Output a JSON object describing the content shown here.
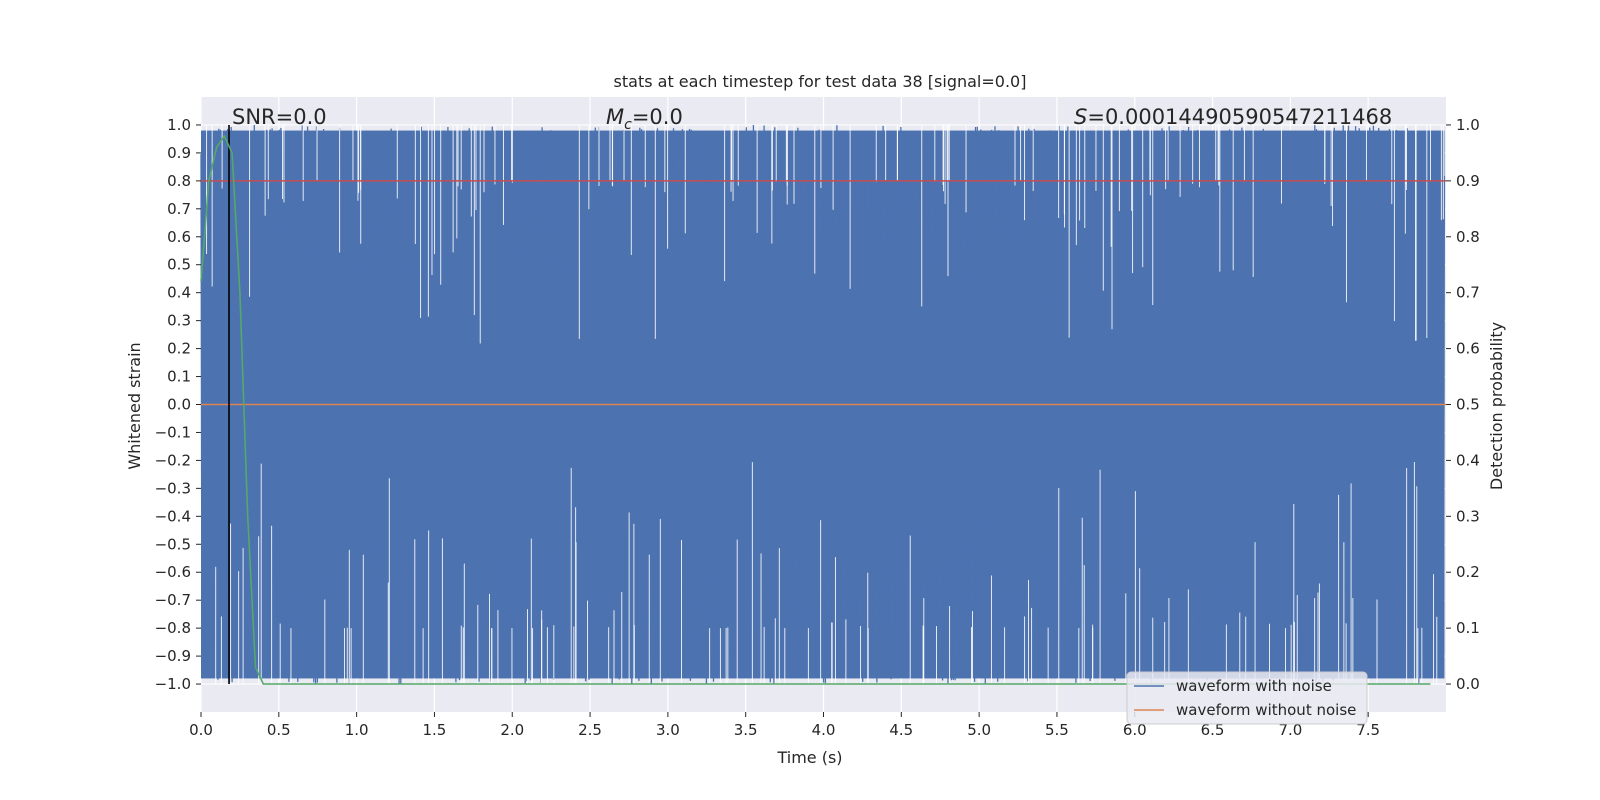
{
  "chart_data": {
    "type": "line",
    "title": "stats at each timestep for test data 38 [signal=0.0]",
    "xlabel": "Time (s)",
    "ylabel": "Whitened strain",
    "ylabel_right": "Detection probability",
    "xlim": [
      0.0,
      8.0
    ],
    "ylim": [
      -1.1,
      1.1
    ],
    "ylim_right": [
      -0.05,
      1.05
    ],
    "x_ticks": [
      "0.0",
      "0.5",
      "1.0",
      "1.5",
      "2.0",
      "2.5",
      "3.0",
      "3.5",
      "4.0",
      "4.5",
      "5.0",
      "5.5",
      "6.0",
      "6.5",
      "7.0",
      "7.5"
    ],
    "y_ticks": [
      "1.0",
      "0.9",
      "0.8",
      "0.7",
      "0.6",
      "0.5",
      "0.4",
      "0.3",
      "0.2",
      "0.1",
      "0.0",
      "−0.1",
      "−0.2",
      "−0.3",
      "−0.4",
      "−0.5",
      "−0.6",
      "−0.7",
      "−0.8",
      "−0.9",
      "−1.0"
    ],
    "y_ticks_right": [
      "1.0",
      "0.9",
      "0.8",
      "0.7",
      "0.6",
      "0.5",
      "0.4",
      "0.3",
      "0.2",
      "0.1",
      "0.0"
    ],
    "annotations": {
      "snr": "SNR=0.0",
      "mc_symbol": "M",
      "mc_sub": "c",
      "mc_value": "=0.0",
      "s_symbol": "S",
      "s_value": "=0.00014490590547211468"
    },
    "legend": {
      "position": "lower-right",
      "entries": [
        {
          "label": "waveform with noise",
          "color": "#4c72b0"
        },
        {
          "label": "waveform without noise",
          "color": "#dd8452"
        }
      ]
    },
    "series": [
      {
        "name": "waveform with noise",
        "color": "#4c72b0",
        "description": "noise fills range -1.0 to 1.0"
      },
      {
        "name": "waveform without noise",
        "color": "#dd8452",
        "values_constant": 0.0
      },
      {
        "name": "threshold",
        "color": "#c44e52",
        "axis": "right",
        "values_constant": 0.9
      },
      {
        "name": "detection probability",
        "color": "#55a868",
        "axis": "right",
        "x": [
          0.0,
          0.05,
          0.1,
          0.15,
          0.2,
          0.25,
          0.3,
          0.35,
          0.4,
          0.5,
          7.9
        ],
        "values": [
          0.72,
          0.9,
          0.96,
          0.98,
          0.95,
          0.7,
          0.3,
          0.03,
          0.0,
          0.0,
          0.0
        ]
      },
      {
        "name": "marker",
        "color": "#000000",
        "x_constant": 0.18
      }
    ],
    "colors": {
      "background": "#eaeaf2",
      "grid": "#ffffff",
      "noise": "#4c72b0",
      "clean": "#dd8452",
      "threshold": "#c44e52",
      "probability": "#55a868",
      "marker": "#000000"
    }
  }
}
